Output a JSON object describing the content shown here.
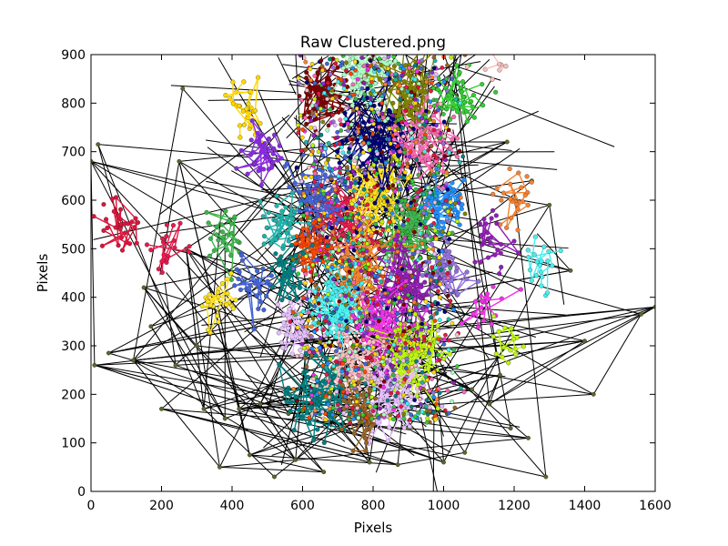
{
  "chart_data": {
    "type": "scatter",
    "title": "Raw Clustered.png",
    "xlabel": "Pixels",
    "ylabel": "Pixels",
    "xlim": [
      0,
      1600
    ],
    "ylim": [
      0,
      900
    ],
    "x_ticks": [
      "0",
      "200",
      "400",
      "600",
      "800",
      "1000",
      "1200",
      "1400",
      "1600"
    ],
    "y_ticks": [
      "0",
      "100",
      "200",
      "300",
      "400",
      "500",
      "600",
      "700",
      "800",
      "900"
    ],
    "grid": false,
    "legend": "none",
    "line_color": "#000000",
    "outlier_color": "#556b2f",
    "palette": [
      "#e6194b",
      "#3cb44b",
      "#ffe119",
      "#4363d8",
      "#f58231",
      "#911eb4",
      "#46f0f0",
      "#f032e6",
      "#bcf60c",
      "#fabebe",
      "#008080",
      "#e6beff",
      "#9a6324",
      "#800000",
      "#aaffc3",
      "#808000",
      "#000075",
      "#ff69b4",
      "#1e90ff",
      "#32cd32",
      "#9370db",
      "#ff4500",
      "#20b2aa",
      "#ffd700",
      "#8a2be2",
      "#dc143c"
    ],
    "clusters": [
      {
        "x": 700,
        "y": 555,
        "n": 90
      },
      {
        "x": 900,
        "y": 545,
        "n": 90
      },
      {
        "x": 800,
        "y": 600,
        "n": 90
      },
      {
        "x": 650,
        "y": 610,
        "n": 70
      },
      {
        "x": 760,
        "y": 450,
        "n": 90
      },
      {
        "x": 880,
        "y": 420,
        "n": 90
      },
      {
        "x": 700,
        "y": 380,
        "n": 80
      },
      {
        "x": 820,
        "y": 330,
        "n": 80
      },
      {
        "x": 900,
        "y": 280,
        "n": 80
      },
      {
        "x": 740,
        "y": 250,
        "n": 80
      },
      {
        "x": 650,
        "y": 190,
        "n": 70
      },
      {
        "x": 860,
        "y": 190,
        "n": 70
      },
      {
        "x": 770,
        "y": 160,
        "n": 50
      },
      {
        "x": 660,
        "y": 820,
        "n": 60
      },
      {
        "x": 780,
        "y": 860,
        "n": 70
      },
      {
        "x": 900,
        "y": 820,
        "n": 70
      },
      {
        "x": 800,
        "y": 720,
        "n": 80
      },
      {
        "x": 950,
        "y": 720,
        "n": 70
      },
      {
        "x": 1000,
        "y": 600,
        "n": 60
      },
      {
        "x": 1040,
        "y": 820,
        "n": 40
      },
      {
        "x": 1000,
        "y": 450,
        "n": 50
      },
      {
        "x": 620,
        "y": 500,
        "n": 60
      },
      {
        "x": 540,
        "y": 560,
        "n": 40
      },
      {
        "x": 430,
        "y": 780,
        "n": 30
      },
      {
        "x": 490,
        "y": 690,
        "n": 40
      },
      {
        "x": 80,
        "y": 550,
        "n": 30
      },
      {
        "x": 230,
        "y": 500,
        "n": 20
      },
      {
        "x": 380,
        "y": 530,
        "n": 25
      },
      {
        "x": 360,
        "y": 380,
        "n": 25
      },
      {
        "x": 460,
        "y": 420,
        "n": 30
      },
      {
        "x": 1200,
        "y": 620,
        "n": 25
      },
      {
        "x": 1150,
        "y": 500,
        "n": 25
      },
      {
        "x": 1280,
        "y": 450,
        "n": 20
      },
      {
        "x": 1120,
        "y": 380,
        "n": 20
      },
      {
        "x": 1180,
        "y": 300,
        "n": 15
      },
      {
        "x": 1130,
        "y": 890,
        "n": 12
      },
      {
        "x": 560,
        "y": 450,
        "n": 40
      },
      {
        "x": 580,
        "y": 330,
        "n": 40
      }
    ],
    "scatter_points": [
      [
        20,
        715
      ],
      [
        0,
        680
      ],
      [
        10,
        260
      ],
      [
        200,
        170
      ],
      [
        320,
        170
      ],
      [
        365,
        50
      ],
      [
        450,
        75
      ],
      [
        520,
        30
      ],
      [
        580,
        65
      ],
      [
        660,
        40
      ],
      [
        790,
        60
      ],
      [
        870,
        55
      ],
      [
        1000,
        60
      ],
      [
        1060,
        80
      ],
      [
        1130,
        180
      ],
      [
        1190,
        130
      ],
      [
        1290,
        30
      ],
      [
        1425,
        200
      ],
      [
        1360,
        455
      ],
      [
        1560,
        365
      ],
      [
        1600,
        380
      ],
      [
        1400,
        310
      ],
      [
        1300,
        590
      ],
      [
        1250,
        640
      ],
      [
        1180,
        720
      ],
      [
        1240,
        110
      ],
      [
        1160,
        240
      ],
      [
        50,
        285
      ],
      [
        120,
        270
      ],
      [
        170,
        340
      ],
      [
        240,
        260
      ],
      [
        300,
        300
      ],
      [
        380,
        150
      ],
      [
        420,
        170
      ],
      [
        270,
        500
      ],
      [
        150,
        420
      ],
      [
        250,
        680
      ],
      [
        260,
        830
      ],
      [
        480,
        180
      ],
      [
        560,
        160
      ],
      [
        900,
        130
      ],
      [
        1010,
        160
      ],
      [
        1080,
        210
      ]
    ]
  }
}
